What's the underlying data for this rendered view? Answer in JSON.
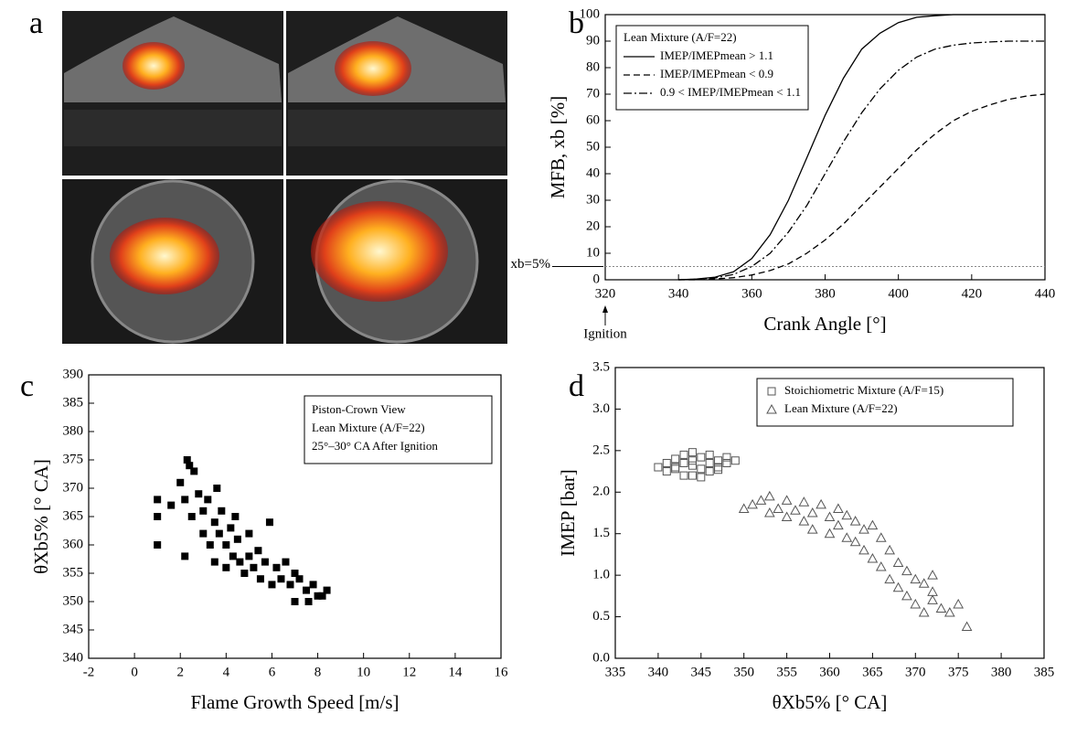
{
  "panels": [
    "a",
    "b",
    "c",
    "d"
  ],
  "chart_data": [
    {
      "type": "line",
      "xlabel": "Crank Angle [°]",
      "ylabel": "MFB, xb [%]",
      "xlim": [
        320,
        440
      ],
      "xticks": [
        320,
        340,
        360,
        380,
        400,
        420,
        440
      ],
      "ylim": [
        0,
        100
      ],
      "yticks": [
        0,
        10,
        20,
        30,
        40,
        50,
        60,
        70,
        80,
        90,
        100
      ],
      "legend_title": "Lean Mixture (A/F=22)",
      "legend": "upper left",
      "reference_line": {
        "value": 5,
        "label": "xb=5%"
      },
      "annotation": {
        "x": 320,
        "label": "Ignition"
      },
      "x": [
        340,
        345,
        350,
        355,
        360,
        365,
        370,
        375,
        380,
        385,
        390,
        395,
        400,
        405,
        410,
        415,
        420,
        425,
        430,
        435,
        440
      ],
      "series": [
        {
          "name": "IMEP/IMEPmean > 1.1",
          "color": "#000000",
          "line_style": "solid",
          "values": [
            0,
            0.3,
            1,
            3,
            8,
            17,
            30,
            46,
            62,
            76,
            87,
            93,
            97,
            99,
            99.6,
            100,
            100,
            100,
            100,
            100,
            100
          ]
        },
        {
          "name": "IMEP/IMEPmean < 0.9",
          "color": "#000000",
          "line_style": "dashed",
          "values": [
            0,
            0,
            0.3,
            0.8,
            1.8,
            3.5,
            6,
            10,
            15,
            21,
            28,
            35,
            42,
            49,
            55,
            60,
            63.5,
            66,
            68,
            69.3,
            70
          ]
        },
        {
          "name": "0.9 < IMEP/IMEPmean < 1.1",
          "color": "#000000",
          "line_style": "dashdot",
          "values": [
            0,
            0.2,
            0.7,
            2,
            5,
            10,
            18,
            28,
            40,
            52,
            63,
            72,
            79,
            84,
            87,
            88.5,
            89.3,
            89.7,
            90,
            90,
            90
          ]
        }
      ]
    },
    {
      "type": "scatter",
      "xlabel": "Flame Growth Speed [m/s]",
      "ylabel": "θXb5% [° CA]",
      "xlim": [
        -2,
        16
      ],
      "xticks": [
        -2,
        0,
        2,
        4,
        6,
        8,
        10,
        12,
        14,
        16
      ],
      "ylim": [
        340,
        390
      ],
      "yticks": [
        340,
        345,
        350,
        355,
        360,
        365,
        370,
        375,
        380,
        385,
        390
      ],
      "annotations": [
        "Piston-Crown View",
        "Lean Mixture (A/F=22)",
        "25°–30° CA After Ignition"
      ],
      "series": [
        {
          "color": "#000000",
          "marker": "filled-square",
          "x": [
            1,
            1,
            1,
            1.6,
            2,
            2.2,
            2.3,
            2.4,
            2.6,
            2.2,
            2.5,
            2.8,
            3,
            3,
            3.2,
            3.3,
            3.5,
            3.5,
            3.7,
            3.8,
            4,
            4,
            4.2,
            4.3,
            4.5,
            4.6,
            4.8,
            5,
            5,
            5.2,
            5.4,
            5.5,
            5.7,
            5.9,
            6,
            6.2,
            6.4,
            6.6,
            6.8,
            7,
            7,
            7.2,
            7.5,
            7.6,
            7.8,
            8,
            8.2,
            8.4,
            4.4,
            3.6
          ],
          "values": [
            360,
            365,
            368,
            367,
            371,
            368,
            375,
            374,
            373,
            358,
            365,
            369,
            366,
            362,
            368,
            360,
            364,
            357,
            362,
            366,
            360,
            356,
            363,
            358,
            361,
            357,
            355,
            362,
            358,
            356,
            359,
            354,
            357,
            364,
            353,
            356,
            354,
            357,
            353,
            355,
            350,
            354,
            352,
            350,
            353,
            351,
            351,
            352,
            365,
            370
          ]
        }
      ]
    },
    {
      "type": "scatter",
      "xlabel": "θXb5% [° CA]",
      "ylabel": "IMEP [bar]",
      "xlim": [
        335,
        385
      ],
      "xticks": [
        335,
        340,
        345,
        350,
        355,
        360,
        365,
        370,
        375,
        380,
        385
      ],
      "ylim": [
        0,
        3.5
      ],
      "yticks": [
        {
          "value": 0,
          "label": "0.0"
        },
        0.5,
        {
          "value": 1,
          "label": "1.0"
        },
        1.5,
        {
          "value": 2,
          "label": "2.0"
        },
        2.5,
        {
          "value": 3,
          "label": "3.0"
        },
        3.5
      ],
      "legend": "upper right",
      "series": [
        {
          "name": "Stoichiometric Mixture (A/F=15)",
          "color": "#555555",
          "marker": "open-square",
          "x": [
            340,
            341,
            341,
            342,
            342,
            343,
            343,
            344,
            344,
            344,
            345,
            345,
            346,
            346,
            346,
            347,
            347,
            348,
            348,
            349,
            343,
            345,
            347,
            342,
            344
          ],
          "values": [
            2.3,
            2.35,
            2.25,
            2.4,
            2.3,
            2.2,
            2.45,
            2.32,
            2.38,
            2.2,
            2.42,
            2.28,
            2.35,
            2.25,
            2.45,
            2.38,
            2.3,
            2.42,
            2.35,
            2.38,
            2.35,
            2.18,
            2.27,
            2.28,
            2.48
          ]
        },
        {
          "name": "Lean Mixture (A/F=22)",
          "color": "#555555",
          "marker": "open-triangle",
          "x": [
            350,
            351,
            352,
            353,
            353,
            354,
            355,
            355,
            356,
            357,
            357,
            358,
            358,
            359,
            360,
            360,
            361,
            361,
            362,
            362,
            363,
            363,
            364,
            364,
            365,
            365,
            366,
            366,
            367,
            367,
            368,
            368,
            369,
            369,
            370,
            370,
            371,
            371,
            372,
            372,
            373,
            374,
            375,
            376,
            372
          ],
          "values": [
            1.8,
            1.85,
            1.9,
            1.75,
            1.95,
            1.8,
            1.7,
            1.9,
            1.78,
            1.65,
            1.88,
            1.75,
            1.55,
            1.85,
            1.7,
            1.5,
            1.8,
            1.6,
            1.72,
            1.45,
            1.65,
            1.4,
            1.55,
            1.3,
            1.6,
            1.2,
            1.45,
            1.1,
            1.3,
            0.95,
            1.15,
            0.85,
            1.05,
            0.75,
            0.95,
            0.65,
            0.9,
            0.55,
            0.8,
            0.7,
            0.6,
            0.55,
            0.65,
            0.38,
            1.0
          ]
        }
      ]
    }
  ]
}
